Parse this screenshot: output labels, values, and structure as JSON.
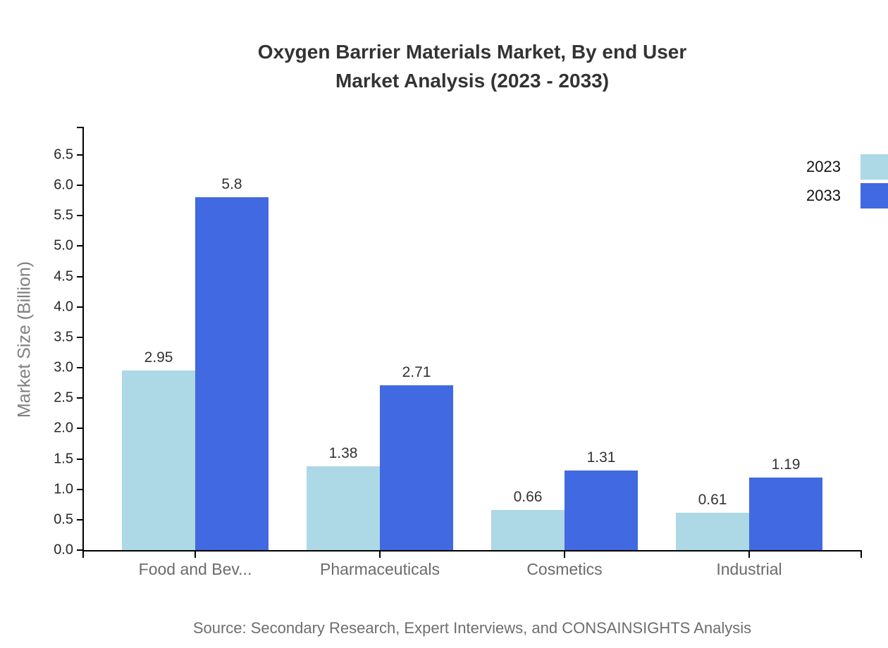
{
  "title": {
    "line1": "Oxygen Barrier Materials Market, By end User",
    "line2": "Market Analysis (2023 - 2033)"
  },
  "source": "Source: Secondary Research, Expert Interviews, and CONSAINSIGHTS Analysis",
  "chart_data": {
    "type": "bar",
    "title": "Oxygen Barrier Materials Market, By end User Market Analysis (2023 - 2033)",
    "categories": [
      "Food and Bev...",
      "Pharmaceuticals",
      "Cosmetics",
      "Industrial"
    ],
    "series": [
      {
        "name": "2023",
        "color": "#ADD8E6",
        "values": [
          2.95,
          1.38,
          0.66,
          0.61
        ]
      },
      {
        "name": "2033",
        "color": "#4169E1",
        "values": [
          5.8,
          2.71,
          1.31,
          1.19
        ]
      }
    ],
    "xlabel": "",
    "ylabel": "Market Size (Billion)",
    "ylim": [
      0,
      6.5
    ],
    "ytick_step": 0.5,
    "grid": false,
    "legend_position": "top-right",
    "value_labels_shown": true
  },
  "colors": {
    "axis": "#000000",
    "title_text": "#333333",
    "ytick_text": "#262626",
    "xtick_text": "#6b6b6b",
    "axis_title_text": "#808080",
    "source_text": "#6e6e6e",
    "background": "#ffffff"
  }
}
